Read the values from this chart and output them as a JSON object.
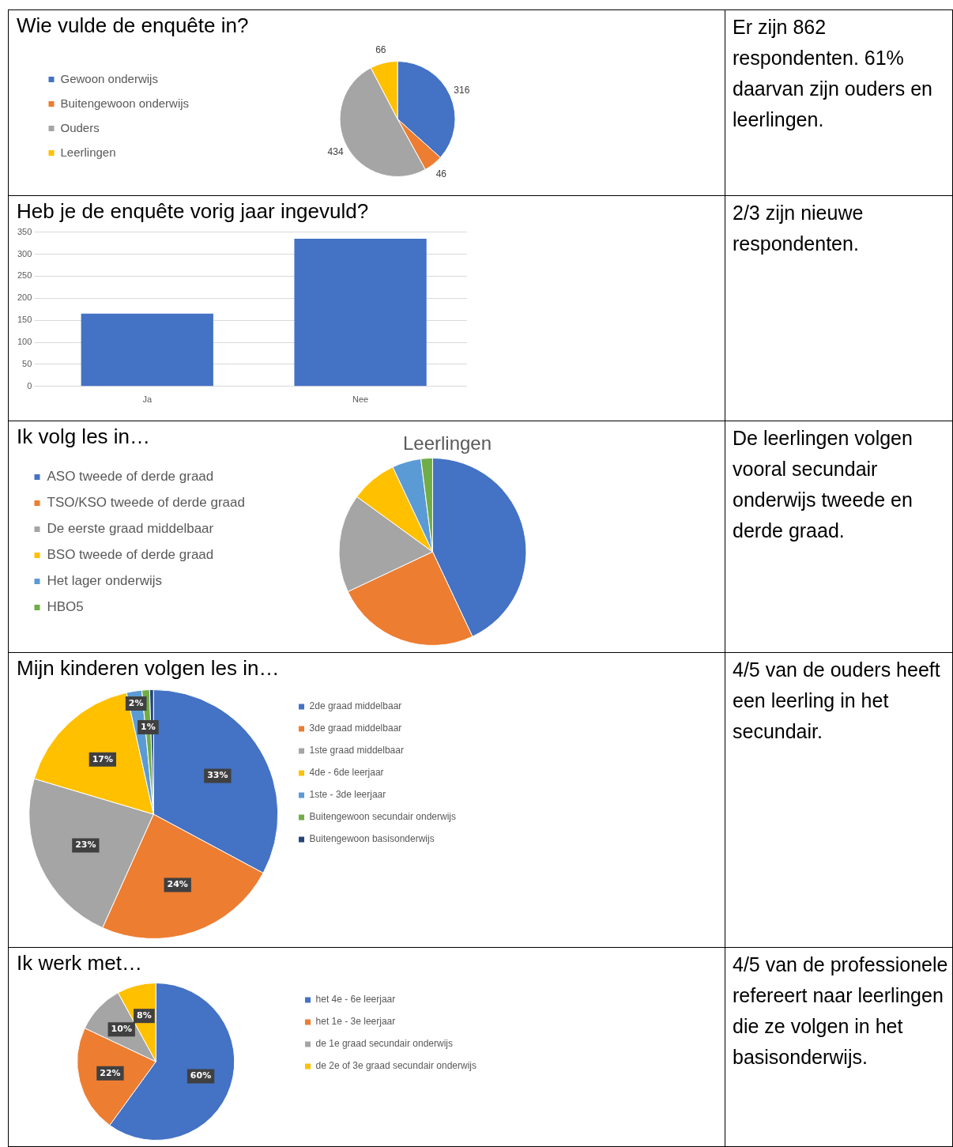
{
  "chart_data": [
    {
      "type": "pie",
      "title": "Wie vulde de enquête in?",
      "categories": [
        "Gewoon onderwijs",
        "Buitengewoon onderwijs",
        "Ouders",
        "Leerlingen"
      ],
      "values": [
        316,
        46,
        434,
        66
      ],
      "colors": [
        "#4472c4",
        "#ed7d31",
        "#a5a5a5",
        "#ffc000"
      ],
      "data_labels": true,
      "legend": "left"
    },
    {
      "type": "other",
      "annotations": [
        "Er zijn 862 respondenten.",
        "61% daarvan zijn ouders en leerlingen."
      ]
    },
    {
      "type": "bar",
      "title": "Heb je de enquête vorig jaar ingevuld?",
      "categories": [
        "Ja",
        "Nee"
      ],
      "values": [
        165,
        335
      ],
      "color": "#4472c4",
      "ylim": [
        0,
        350
      ],
      "yticks": [
        0,
        50,
        100,
        150,
        200,
        250,
        300,
        350
      ],
      "grid": "y"
    },
    {
      "type": "other",
      "annotations": [
        "2/3 zijn nieuwe respondenten."
      ]
    },
    {
      "type": "pie",
      "title": "Ik volg les in…",
      "subtitle": "Leerlingen",
      "categories": [
        "ASO tweede of derde graad",
        "TSO/KSO tweede of derde graad",
        "De eerste graad middelbaar",
        "BSO tweede of derde graad",
        "Het lager onderwijs",
        "HBO5"
      ],
      "values": [
        43,
        25,
        17,
        8,
        5,
        2
      ],
      "colors": [
        "#4472c4",
        "#ed7d31",
        "#a5a5a5",
        "#ffc000",
        "#5b9bd5",
        "#70ad47"
      ],
      "legend": "left"
    },
    {
      "type": "other",
      "annotations": [
        "De leerlingen volgen vooral secundair onderwijs tweede en derde graad."
      ]
    },
    {
      "type": "pie",
      "title": "Mijn kinderen volgen les in…",
      "categories": [
        "2de graad middelbaar",
        "3de graad middelbaar",
        "1ste graad middelbaar",
        "4de - 6de leerjaar",
        "1ste - 3de leerjaar",
        "Buitengewoon secundair onderwijs",
        "Buitengewoon basisonderwijs"
      ],
      "values": [
        33,
        24,
        23,
        17,
        2,
        1,
        0.5
      ],
      "value_labels": [
        "33%",
        "24%",
        "23%",
        "17%",
        "2%",
        "1%",
        null
      ],
      "colors": [
        "#4472c4",
        "#ed7d31",
        "#a5a5a5",
        "#ffc000",
        "#5b9bd5",
        "#70ad47",
        "#264478"
      ],
      "legend": "right"
    },
    {
      "type": "other",
      "annotations": [
        "4/5 van de ouders heeft een leerling in het secundair."
      ]
    },
    {
      "type": "pie",
      "title": "Ik werk met…",
      "categories": [
        "het 4e - 6e leerjaar",
        "het 1e - 3e leerjaar",
        "de 1e graad secundair onderwijs",
        "de 2e of 3e graad secundair onderwijs"
      ],
      "values": [
        60,
        22,
        10,
        8
      ],
      "value_labels": [
        "60%",
        "22%",
        "10%",
        "8%"
      ],
      "colors": [
        "#4472c4",
        "#ed7d31",
        "#a5a5a5",
        "#ffc000"
      ],
      "legend": "right"
    },
    {
      "type": "other",
      "annotations": [
        "4/5 van de professionele refereert naar leerlingen die ze volgen in het basisonderwijs."
      ]
    }
  ]
}
